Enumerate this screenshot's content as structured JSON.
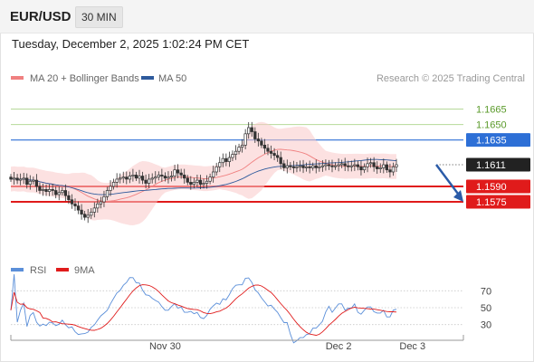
{
  "header": {
    "symbol": "EUR/USD",
    "timeframe": "30 MIN",
    "timestamp": "Tuesday, December 2, 2025 1:02:24 PM CET"
  },
  "legend": {
    "ma20": {
      "label": "MA 20 + Bollinger Bands",
      "color": "#f08080"
    },
    "ma50": {
      "label": "MA 50",
      "color": "#2e5a9c"
    }
  },
  "copyright": "Research © 2025 Trading Central",
  "chart_data": {
    "type": "candlestick",
    "price_axis": {
      "min": 1.1525,
      "max": 1.169
    },
    "levels": [
      {
        "value": 1.1665,
        "label": "1.1665",
        "kind": "target-outline",
        "color": "#6aa83a"
      },
      {
        "value": 1.165,
        "label": "1.1650",
        "kind": "target-outline",
        "color": "#6aa83a"
      },
      {
        "value": 1.1635,
        "label": "1.1635",
        "kind": "pivot",
        "color": "#2d6fd6"
      },
      {
        "value": 1.1611,
        "label": "1.1611",
        "kind": "last-price",
        "color": "#222222"
      },
      {
        "value": 1.159,
        "label": "1.1590",
        "kind": "support",
        "color": "#e01b1b"
      },
      {
        "value": 1.1575,
        "label": "1.1575",
        "kind": "support",
        "color": "#e01b1b"
      }
    ],
    "x_labels": [
      {
        "label": "Nov 30",
        "bar": 48
      },
      {
        "label": "Dec 2",
        "bar": 102
      },
      {
        "label": "Dec 3",
        "bar": 125
      }
    ],
    "closes": [
      1.1597,
      1.1598,
      1.1596,
      1.1597,
      1.1598,
      1.1592,
      1.1595,
      1.1596,
      1.159,
      1.1586,
      1.1587,
      1.1585,
      1.1587,
      1.1586,
      1.1582,
      1.1584,
      1.1586,
      1.1581,
      1.1577,
      1.1573,
      1.1571,
      1.1567,
      1.1563,
      1.156,
      1.1562,
      1.1565,
      1.1569,
      1.1573,
      1.1575,
      1.158,
      1.1586,
      1.159,
      1.1594,
      1.1597,
      1.1598,
      1.1599,
      1.1597,
      1.16,
      1.1601,
      1.1598,
      1.16,
      1.1596,
      1.1593,
      1.1597,
      1.1598,
      1.1599,
      1.1601,
      1.16,
      1.1598,
      1.1599,
      1.16,
      1.1606,
      1.1603,
      1.1601,
      1.1598,
      1.1594,
      1.1592,
      1.1594,
      1.1596,
      1.1592,
      1.1593,
      1.1595,
      1.1599,
      1.1604,
      1.1609,
      1.1613,
      1.1617,
      1.1614,
      1.1618,
      1.1621,
      1.1624,
      1.1628,
      1.163,
      1.1641,
      1.1647,
      1.1643,
      1.1636,
      1.1634,
      1.163,
      1.1627,
      1.1624,
      1.1622,
      1.162,
      1.1618,
      1.1612,
      1.1608,
      1.161,
      1.1609,
      1.1608,
      1.1609,
      1.161,
      1.1608,
      1.1609,
      1.1608,
      1.161,
      1.1608,
      1.1609,
      1.161,
      1.1611,
      1.161,
      1.1609,
      1.161,
      1.1611,
      1.1612,
      1.161,
      1.1609,
      1.161,
      1.1611,
      1.1609,
      1.1606,
      1.1609,
      1.1612,
      1.1613,
      1.1609,
      1.1607,
      1.1608,
      1.1611,
      1.1606,
      1.1604,
      1.1609,
      1.1611
    ],
    "projection": {
      "from_value": 1.1611,
      "to_value": 1.1575
    },
    "rsi": {
      "axis": {
        "min": 20,
        "max": 80
      },
      "levels": [
        {
          "value": 70,
          "label": "70"
        },
        {
          "value": 50,
          "label": "50"
        },
        {
          "value": 30,
          "label": "30"
        }
      ],
      "legend": {
        "rsi": {
          "label": "RSI",
          "color": "#5b8fd9"
        },
        "ma9": {
          "label": "9MA",
          "color": "#e01b1b"
        }
      }
    }
  }
}
